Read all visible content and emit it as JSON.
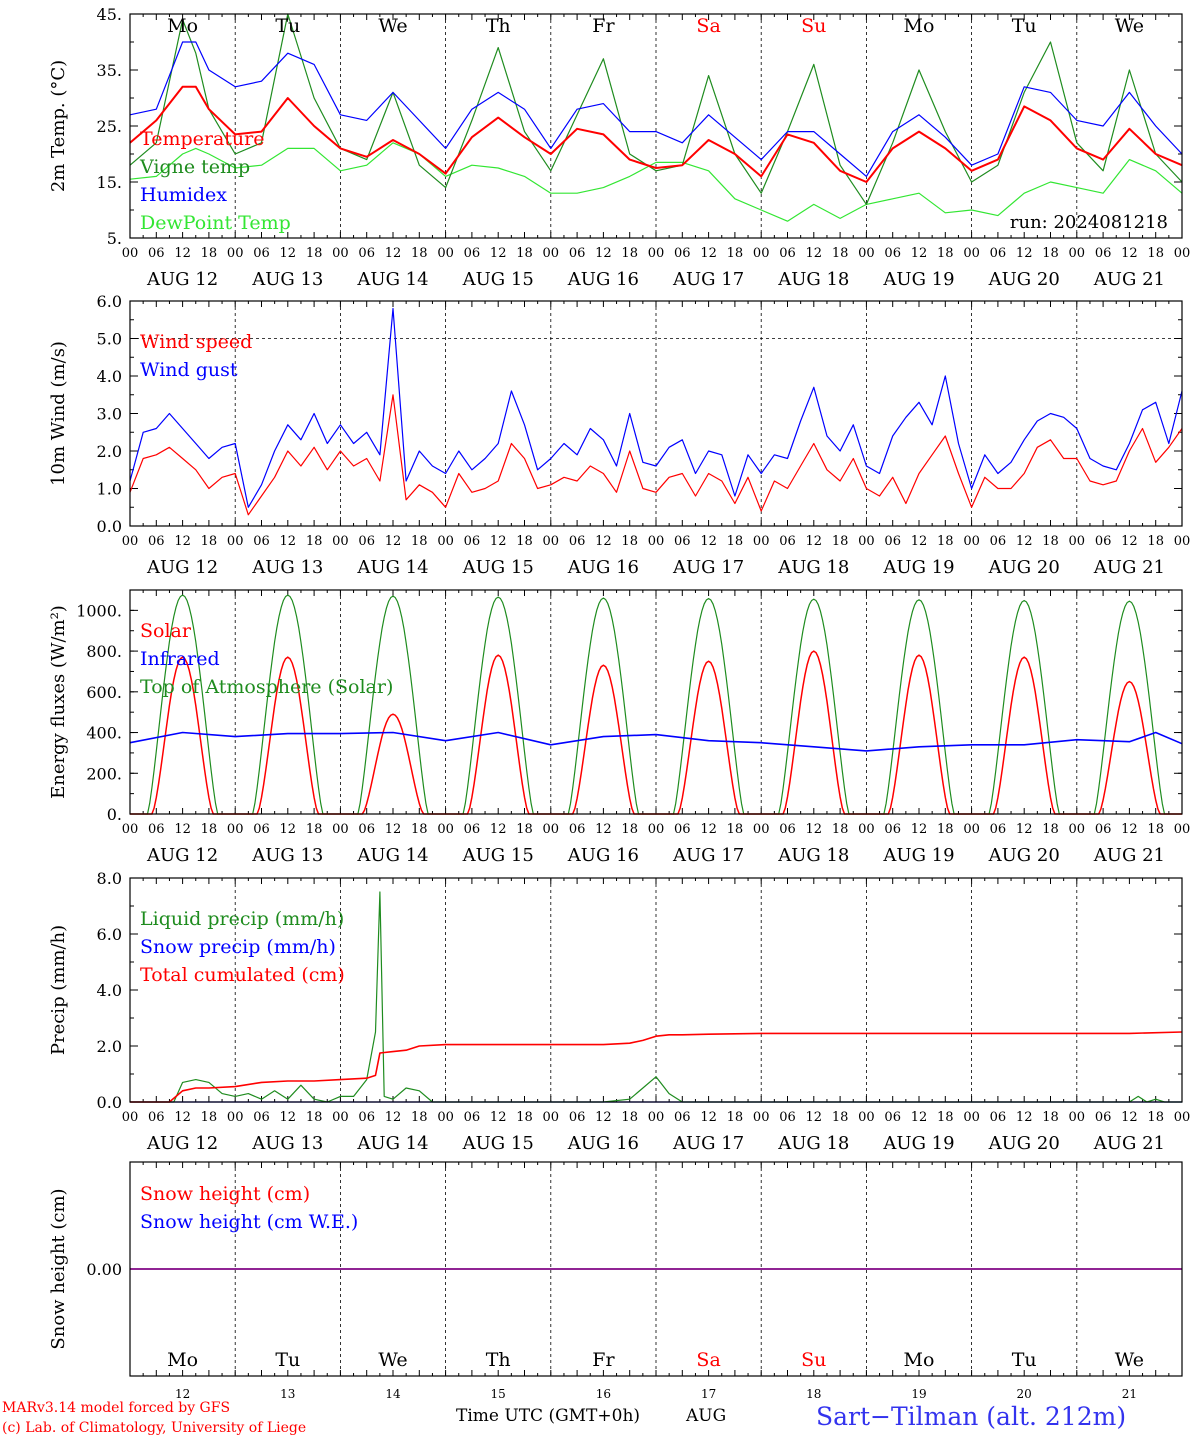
{
  "run_label": "run: 2024081218",
  "footer": {
    "model_line": "MARv3.14 model forced by GFS",
    "copyright_line": "(c) Lab. of Climatology, University of Liege",
    "time_axis_label": "Time UTC (GMT+0h)",
    "month_label": "AUG",
    "station_label": "Sart−Tilman (alt. 212m)"
  },
  "days": {
    "weekday_labels": [
      "Mo",
      "Tu",
      "We",
      "Th",
      "Fr",
      "Sa",
      "Su",
      "Mo",
      "Tu",
      "We"
    ],
    "weekend_flags": [
      false,
      false,
      false,
      false,
      false,
      true,
      true,
      false,
      false,
      false
    ],
    "date_labels": [
      "AUG 12",
      "AUG 13",
      "AUG 14",
      "AUG 15",
      "AUG 16",
      "AUG 17",
      "AUG 18",
      "AUG 19",
      "AUG 20",
      "AUG 21"
    ],
    "day_numbers": [
      "12",
      "13",
      "14",
      "15",
      "16",
      "17",
      "18",
      "19",
      "20",
      "21"
    ],
    "hour_tick_labels": [
      "00",
      "06",
      "12",
      "18"
    ],
    "final_hour_label": "00"
  },
  "colors": {
    "red": "#ff0000",
    "green": "#1f8c1f",
    "blue": "#0000ff",
    "light_green": "#33e633",
    "purple": "#800080",
    "station_blue": "#3333ee"
  },
  "chart_data": [
    {
      "type": "line",
      "ylabel": "2m Temp. (°C)",
      "ylim": [
        5,
        45
      ],
      "yticks": [
        5,
        15,
        25,
        35,
        45
      ],
      "ytick_labels": [
        "5.",
        "15.",
        "25.",
        "35.",
        "45."
      ],
      "xlim": [
        0,
        240
      ],
      "series": [
        {
          "name": "Temperature",
          "color": "red",
          "x": [
            0,
            6,
            12,
            15,
            18,
            24,
            30,
            36,
            42,
            48,
            54,
            60,
            66,
            72,
            78,
            84,
            90,
            96,
            102,
            108,
            114,
            120,
            126,
            132,
            138,
            144,
            150,
            156,
            162,
            168,
            174,
            180,
            186,
            192,
            198,
            204,
            210,
            216,
            222,
            228,
            234,
            240
          ],
          "y": [
            22,
            26,
            32,
            32,
            28,
            23.5,
            24,
            30,
            25,
            21,
            19.5,
            22.5,
            20,
            16.5,
            23,
            26.5,
            23,
            20,
            24.5,
            23.5,
            19,
            17.5,
            18,
            22.5,
            20,
            16,
            23.5,
            22,
            17,
            15,
            21,
            24,
            21,
            17,
            19,
            28.5,
            26,
            21,
            19,
            24.5,
            20,
            18
          ]
        },
        {
          "name": "Vigne temp",
          "color": "green",
          "x": [
            0,
            6,
            12,
            15,
            18,
            24,
            30,
            36,
            42,
            48,
            54,
            60,
            66,
            72,
            78,
            84,
            90,
            96,
            102,
            108,
            114,
            120,
            126,
            132,
            138,
            144,
            150,
            156,
            162,
            168,
            174,
            180,
            186,
            192,
            198,
            204,
            210,
            216,
            222,
            228,
            234,
            240
          ],
          "y": [
            18,
            22,
            44,
            38,
            28,
            20,
            22,
            45,
            30,
            21,
            19,
            31,
            18,
            14,
            26,
            39,
            24,
            17,
            27,
            37,
            20,
            17,
            18,
            34,
            20,
            13,
            24,
            36,
            18,
            11,
            22,
            35,
            24,
            15,
            18,
            31,
            40,
            22,
            17,
            35,
            20,
            15
          ]
        },
        {
          "name": "Humidex",
          "color": "blue",
          "x": [
            0,
            6,
            12,
            15,
            18,
            24,
            30,
            36,
            42,
            48,
            54,
            60,
            66,
            72,
            78,
            84,
            90,
            96,
            102,
            108,
            114,
            120,
            126,
            132,
            138,
            144,
            150,
            156,
            162,
            168,
            174,
            180,
            186,
            192,
            198,
            204,
            210,
            216,
            222,
            228,
            234,
            240
          ],
          "y": [
            27,
            28,
            40,
            40,
            35,
            32,
            33,
            38,
            36,
            27,
            26,
            31,
            26,
            21,
            28,
            31,
            28,
            21,
            28,
            29,
            24,
            24,
            22,
            27,
            23,
            19,
            24,
            24,
            20,
            16,
            24,
            27,
            23,
            18,
            20,
            32,
            31,
            26,
            25,
            31,
            25,
            20
          ]
        },
        {
          "name": "DewPoint Temp",
          "color": "light_green",
          "x": [
            0,
            6,
            12,
            15,
            18,
            24,
            30,
            36,
            42,
            48,
            54,
            60,
            66,
            72,
            78,
            84,
            90,
            96,
            102,
            108,
            114,
            120,
            126,
            132,
            138,
            144,
            150,
            156,
            162,
            168,
            174,
            180,
            186,
            192,
            198,
            204,
            210,
            216,
            222,
            228,
            234,
            240
          ],
          "y": [
            15.5,
            16,
            20,
            21,
            20,
            17.5,
            18,
            21,
            21,
            17,
            18,
            22,
            20,
            16,
            18,
            17.5,
            16,
            13,
            13,
            14,
            16,
            18.5,
            18.5,
            17,
            12,
            10,
            8,
            11,
            8.5,
            11,
            12,
            13,
            9.5,
            10,
            9,
            13,
            15,
            14,
            13,
            19,
            17,
            13
          ]
        }
      ]
    },
    {
      "type": "line",
      "ylabel": "10m Wind (m/s)",
      "ylim": [
        0,
        6
      ],
      "yticks": [
        0,
        1,
        2,
        3,
        4,
        5,
        6
      ],
      "ytick_labels": [
        "0.0",
        "1.0",
        "2.0",
        "3.0",
        "4.0",
        "5.0",
        "6.0"
      ],
      "dashed_line_at": 5,
      "xlim": [
        0,
        240
      ],
      "series": [
        {
          "name": "Wind speed",
          "color": "red",
          "x": [
            0,
            3,
            6,
            9,
            12,
            15,
            18,
            21,
            24,
            27,
            30,
            33,
            36,
            39,
            42,
            45,
            48,
            51,
            54,
            57,
            60,
            63,
            66,
            69,
            72,
            75,
            78,
            81,
            84,
            87,
            90,
            93,
            96,
            99,
            102,
            105,
            108,
            111,
            114,
            117,
            120,
            123,
            126,
            129,
            132,
            135,
            138,
            141,
            144,
            147,
            150,
            153,
            156,
            159,
            162,
            165,
            168,
            171,
            174,
            177,
            180,
            183,
            186,
            189,
            192,
            195,
            198,
            201,
            204,
            207,
            210,
            213,
            216,
            219,
            222,
            225,
            228,
            231,
            234,
            237,
            240
          ],
          "y": [
            0.9,
            1.8,
            1.9,
            2.1,
            1.8,
            1.5,
            1.0,
            1.3,
            1.4,
            0.3,
            0.8,
            1.3,
            2.0,
            1.6,
            2.1,
            1.5,
            2.0,
            1.6,
            1.8,
            1.2,
            3.5,
            0.7,
            1.1,
            0.9,
            0.5,
            1.4,
            0.9,
            1.0,
            1.2,
            2.2,
            1.8,
            1.0,
            1.1,
            1.3,
            1.2,
            1.6,
            1.4,
            0.9,
            2.0,
            1.0,
            0.9,
            1.3,
            1.4,
            0.8,
            1.4,
            1.2,
            0.6,
            1.3,
            0.4,
            1.2,
            1.0,
            1.6,
            2.2,
            1.5,
            1.2,
            1.8,
            1.0,
            0.8,
            1.3,
            0.6,
            1.4,
            1.9,
            2.4,
            1.4,
            0.5,
            1.3,
            1.0,
            1.0,
            1.4,
            2.1,
            2.3,
            1.8,
            1.8,
            1.2,
            1.1,
            1.2,
            2.0,
            2.6,
            1.7,
            2.1,
            2.6
          ]
        },
        {
          "name": "Wind gust",
          "color": "blue",
          "x": [
            0,
            3,
            6,
            9,
            12,
            15,
            18,
            21,
            24,
            27,
            30,
            33,
            36,
            39,
            42,
            45,
            48,
            51,
            54,
            57,
            60,
            63,
            66,
            69,
            72,
            75,
            78,
            81,
            84,
            87,
            90,
            93,
            96,
            99,
            102,
            105,
            108,
            111,
            114,
            117,
            120,
            123,
            126,
            129,
            132,
            135,
            138,
            141,
            144,
            147,
            150,
            153,
            156,
            159,
            162,
            165,
            168,
            171,
            174,
            177,
            180,
            183,
            186,
            189,
            192,
            195,
            198,
            201,
            204,
            207,
            210,
            213,
            216,
            219,
            222,
            225,
            228,
            231,
            234,
            237,
            240
          ],
          "y": [
            1.2,
            2.5,
            2.6,
            3.0,
            2.6,
            2.2,
            1.8,
            2.1,
            2.2,
            0.5,
            1.1,
            2.0,
            2.7,
            2.3,
            3.0,
            2.2,
            2.7,
            2.2,
            2.5,
            1.9,
            5.8,
            1.2,
            2.0,
            1.6,
            1.4,
            2.0,
            1.5,
            1.8,
            2.2,
            3.6,
            2.7,
            1.5,
            1.8,
            2.2,
            1.9,
            2.6,
            2.3,
            1.6,
            3.0,
            1.7,
            1.6,
            2.1,
            2.3,
            1.4,
            2.0,
            1.9,
            0.8,
            1.9,
            1.4,
            1.9,
            1.8,
            2.8,
            3.7,
            2.4,
            2.0,
            2.7,
            1.6,
            1.4,
            2.4,
            2.9,
            3.3,
            2.7,
            4.0,
            2.2,
            1.0,
            1.9,
            1.4,
            1.7,
            2.3,
            2.8,
            3.0,
            2.9,
            2.6,
            1.8,
            1.6,
            1.5,
            2.2,
            3.1,
            3.3,
            2.2,
            3.6
          ]
        }
      ]
    },
    {
      "type": "line",
      "ylabel": "Energy fluxes (W/m²)",
      "ylim": [
        0,
        1100
      ],
      "yticks": [
        0,
        200,
        400,
        600,
        800,
        1000
      ],
      "ytick_labels": [
        "0.",
        "200.",
        "400.",
        "600.",
        "800.",
        "1000."
      ],
      "xlim": [
        0,
        240
      ],
      "daily_peaks": {
        "toa_solar": [
          1075,
          1075,
          1070,
          1065,
          1060,
          1058,
          1055,
          1052,
          1048,
          1045
        ],
        "solar": [
          770,
          770,
          490,
          780,
          730,
          750,
          800,
          780,
          770,
          650
        ]
      },
      "series": [
        {
          "name": "Solar",
          "color": "red"
        },
        {
          "name": "Infrared",
          "color": "blue",
          "x": [
            0,
            12,
            24,
            36,
            48,
            60,
            72,
            84,
            96,
            108,
            120,
            132,
            144,
            156,
            168,
            180,
            192,
            204,
            216,
            228,
            234,
            240
          ],
          "y": [
            350,
            400,
            380,
            395,
            395,
            400,
            360,
            400,
            340,
            380,
            390,
            360,
            350,
            330,
            310,
            330,
            340,
            340,
            365,
            355,
            400,
            345
          ]
        },
        {
          "name": "Top of Atmosphere (Solar)",
          "color": "green"
        }
      ]
    },
    {
      "type": "line",
      "ylabel": "Precip (mm/h)",
      "ylim": [
        0,
        8
      ],
      "yticks": [
        0,
        2,
        4,
        6,
        8
      ],
      "ytick_labels": [
        "0.0",
        "2.0",
        "4.0",
        "6.0",
        "8.0"
      ],
      "xlim": [
        0,
        240
      ],
      "series": [
        {
          "name": "Liquid precip (mm/h)",
          "color": "green",
          "x": [
            0,
            10,
            12,
            15,
            18,
            21,
            24,
            27,
            30,
            33,
            36,
            39,
            42,
            45,
            48,
            51,
            54,
            56,
            57,
            58,
            60,
            63,
            66,
            69,
            72,
            108,
            114,
            117,
            120,
            123,
            126,
            129,
            132,
            228,
            230,
            232,
            234,
            236,
            240
          ],
          "y": [
            0,
            0,
            0.7,
            0.8,
            0.7,
            0.3,
            0.2,
            0.3,
            0.1,
            0.4,
            0.1,
            0.6,
            0.1,
            0,
            0.2,
            0.2,
            0.8,
            2.5,
            7.5,
            0.2,
            0.1,
            0.5,
            0.4,
            0,
            0,
            0,
            0.1,
            0.5,
            0.9,
            0.3,
            0,
            0,
            0,
            0,
            0.2,
            0,
            0.1,
            0,
            0
          ]
        },
        {
          "name": "Snow precip (mm/h)",
          "color": "blue",
          "x": [
            0,
            240
          ],
          "y": [
            0,
            0
          ]
        },
        {
          "name": "Total cumulated (cm)",
          "color": "red",
          "x": [
            0,
            9,
            12,
            15,
            18,
            24,
            30,
            36,
            42,
            48,
            54,
            56,
            57,
            60,
            63,
            66,
            72,
            84,
            96,
            108,
            114,
            117,
            120,
            123,
            126,
            132,
            144,
            180,
            204,
            228,
            240
          ],
          "y": [
            0,
            0,
            0.4,
            0.5,
            0.5,
            0.55,
            0.7,
            0.75,
            0.75,
            0.8,
            0.85,
            0.95,
            1.75,
            1.8,
            1.85,
            2.0,
            2.05,
            2.05,
            2.05,
            2.05,
            2.1,
            2.2,
            2.35,
            2.4,
            2.4,
            2.42,
            2.45,
            2.45,
            2.45,
            2.45,
            2.5
          ]
        }
      ]
    },
    {
      "type": "line",
      "ylabel": "Snow height (cm)",
      "ylim": [
        -1,
        1
      ],
      "yticks": [
        0
      ],
      "ytick_labels": [
        "0.00"
      ],
      "xlim": [
        0,
        240
      ],
      "series": [
        {
          "name": "Snow height (cm)",
          "color": "red",
          "x": [
            0,
            240
          ],
          "y": [
            0,
            0
          ]
        },
        {
          "name": "Snow height (cm W.E.)",
          "color": "blue",
          "x": [
            0,
            240
          ],
          "y": [
            0,
            0
          ]
        }
      ]
    }
  ]
}
